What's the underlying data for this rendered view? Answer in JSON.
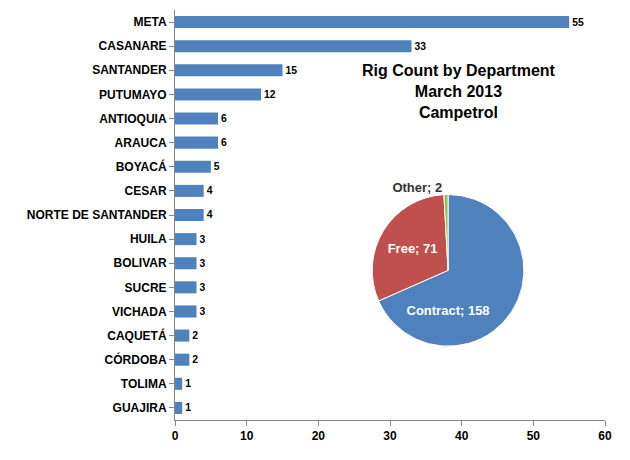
{
  "chart_data": [
    {
      "type": "bar",
      "orientation": "horizontal",
      "categories": [
        "META",
        "CASANARE",
        "SANTANDER",
        "PUTUMAYO",
        "ANTIOQUIA",
        "ARAUCA",
        "BOYACÁ",
        "CESAR",
        "NORTE DE SANTANDER",
        "HUILA",
        "BOLIVAR",
        "SUCRE",
        "VICHADA",
        "CAQUETÁ",
        "CÓRDOBA",
        "TOLIMA",
        "GUAJIRA"
      ],
      "values": [
        55,
        33,
        15,
        12,
        6,
        6,
        5,
        4,
        4,
        3,
        3,
        3,
        3,
        2,
        2,
        1,
        1
      ],
      "color": "#4f81bd",
      "xlim": [
        0,
        60
      ],
      "xticks": [
        0,
        10,
        20,
        30,
        40,
        50,
        60
      ],
      "data_labels": true,
      "grid": false
    },
    {
      "type": "pie",
      "title": [
        "Rig Count by Department",
        "March 2013",
        "Campetrol"
      ],
      "categories": [
        "Contract",
        "Free",
        "Other"
      ],
      "values": [
        158,
        71,
        2
      ],
      "value_labels": [
        "Contract; 158",
        "Free; 71",
        "Other; 2"
      ],
      "colors": [
        "#4f81bd",
        "#c0504d",
        "#9bbb59"
      ],
      "data_labels": true
    }
  ]
}
